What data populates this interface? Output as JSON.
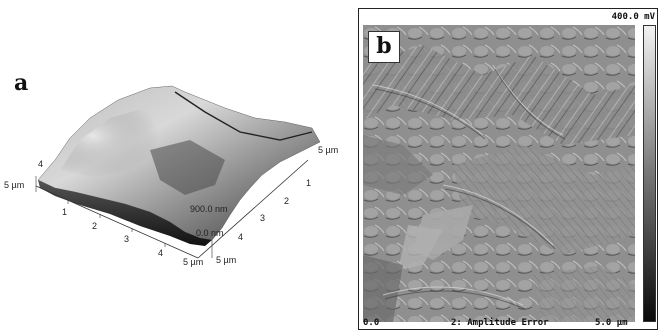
{
  "panel_a": {
    "label": "a",
    "axis_left_label": "5 µm",
    "axis_front_right_label": "5 µm",
    "axis_right_top_label": "5 µm",
    "axis_right_bottom_label": "5 µm",
    "x_ticks": [
      "1",
      "2",
      "3",
      "4"
    ],
    "y_ticks": [
      "1",
      "2",
      "3",
      "4"
    ],
    "left_tick": "4",
    "z_max_label": "900.0 nm",
    "z_min_label": "0.0 nm"
  },
  "panel_b": {
    "label": "b",
    "scale_max": "400.0 mV",
    "axis_start": "0.0",
    "channel": "2: Amplitude Error",
    "axis_end": "5.0 µm"
  }
}
